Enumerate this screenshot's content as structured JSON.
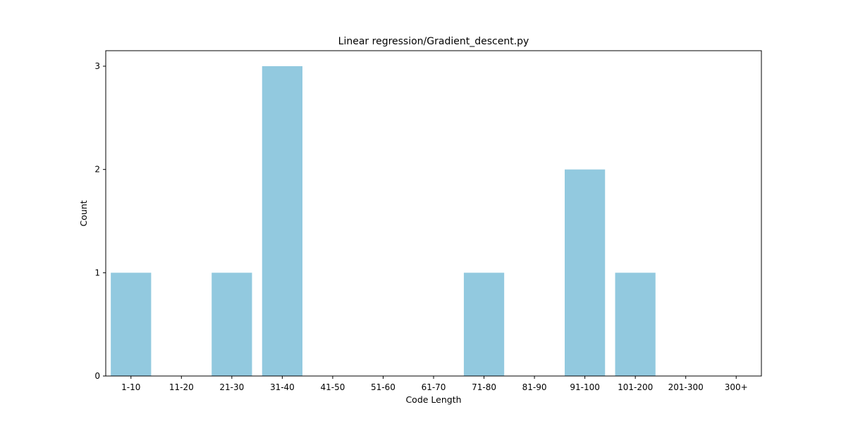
{
  "chart_data": {
    "type": "bar",
    "title": "Linear regression/Gradient_descent.py",
    "xlabel": "Code Length",
    "ylabel": "Count",
    "categories": [
      "1-10",
      "11-20",
      "21-30",
      "31-40",
      "41-50",
      "51-60",
      "61-70",
      "71-80",
      "81-90",
      "91-100",
      "101-200",
      "201-300",
      "300+"
    ],
    "values": [
      1,
      0,
      1,
      3,
      0,
      0,
      0,
      1,
      0,
      2,
      1,
      0,
      0
    ],
    "yticks": [
      0,
      1,
      2,
      3
    ],
    "ylim": [
      0,
      3.15
    ],
    "grid": false,
    "bar_color": "#92c9df"
  }
}
